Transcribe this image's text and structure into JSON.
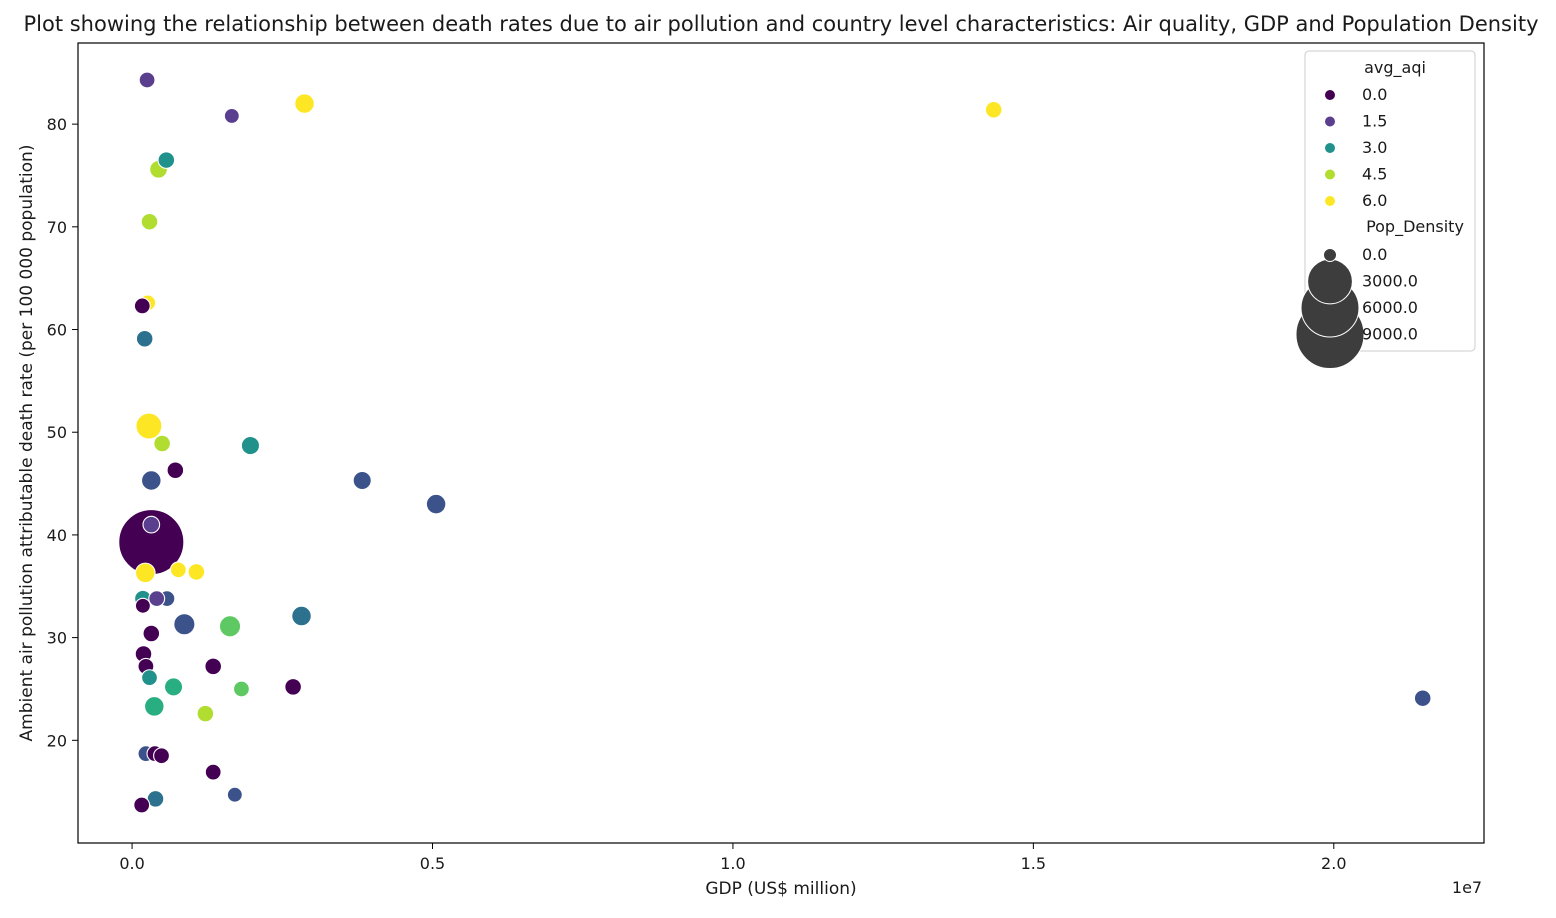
{
  "chart_data": {
    "type": "scatter",
    "title": "Plot showing the relationship between death rates due to air pollution and country level characteristics: Air quality, GDP and Population Density",
    "xlabel": "GDP (US$ million)",
    "ylabel": "Ambient air pollution attributable death rate (per 100 000 population)",
    "x_offset_label": "1e7",
    "x_ticks": [
      "0.0",
      "0.5",
      "1.0",
      "1.5",
      "2.0"
    ],
    "y_ticks": [
      "20",
      "30",
      "40",
      "50",
      "60",
      "70",
      "80"
    ],
    "xlim": [
      -0.09,
      2.25
    ],
    "ylim": [
      10,
      87.9
    ],
    "x_multiplier": 10000000,
    "grid": false,
    "legend_position": "top-right",
    "legend": {
      "hue_title": "avg_aqi",
      "hue_entries": [
        {
          "label": "0.0",
          "color": "#440154"
        },
        {
          "label": "1.5",
          "color": "#5b3f8f"
        },
        {
          "label": "3.0",
          "color": "#21918c"
        },
        {
          "label": "4.5",
          "color": "#b0dd2f"
        },
        {
          "label": "6.0",
          "color": "#fde725"
        }
      ],
      "size_title": "Pop_Density",
      "size_entries": [
        {
          "label": "0.0",
          "size": 0
        },
        {
          "label": "3000.0",
          "size": 3000
        },
        {
          "label": "6000.0",
          "size": 6000
        },
        {
          "label": "9000.0",
          "size": 9000
        }
      ]
    },
    "points": [
      {
        "x": 0.025,
        "y": 84.3,
        "color": "#5b3f8f",
        "pop_density": 120
      },
      {
        "x": 0.166,
        "y": 80.8,
        "color": "#5b3f8f",
        "pop_density": 90
      },
      {
        "x": 0.287,
        "y": 82.0,
        "color": "#fde725",
        "pop_density": 300
      },
      {
        "x": 1.434,
        "y": 81.4,
        "color": "#fde725",
        "pop_density": 150
      },
      {
        "x": 0.057,
        "y": 76.5,
        "color": "#21918c",
        "pop_density": 150
      },
      {
        "x": 0.044,
        "y": 75.6,
        "color": "#b0dd2f",
        "pop_density": 200
      },
      {
        "x": 0.029,
        "y": 70.5,
        "color": "#b0dd2f",
        "pop_density": 150
      },
      {
        "x": 0.026,
        "y": 62.6,
        "color": "#fde725",
        "pop_density": 120
      },
      {
        "x": 0.017,
        "y": 62.3,
        "color": "#440154",
        "pop_density": 120
      },
      {
        "x": 0.021,
        "y": 59.1,
        "color": "#2c728e",
        "pop_density": 150
      },
      {
        "x": 0.028,
        "y": 50.6,
        "color": "#fde725",
        "pop_density": 800
      },
      {
        "x": 0.05,
        "y": 48.9,
        "color": "#b0dd2f",
        "pop_density": 150
      },
      {
        "x": 0.197,
        "y": 48.7,
        "color": "#21918c",
        "pop_density": 220
      },
      {
        "x": 0.072,
        "y": 46.3,
        "color": "#440154",
        "pop_density": 150
      },
      {
        "x": 0.032,
        "y": 45.3,
        "color": "#3b528b",
        "pop_density": 300
      },
      {
        "x": 0.383,
        "y": 45.3,
        "color": "#3b528b",
        "pop_density": 220
      },
      {
        "x": 0.506,
        "y": 43.0,
        "color": "#3b528b",
        "pop_density": 300
      },
      {
        "x": 0.032,
        "y": 41.0,
        "color": "#5b3f8f",
        "pop_density": 150
      },
      {
        "x": 0.032,
        "y": 39.3,
        "color": "#440154",
        "pop_density": 9000
      },
      {
        "x": 0.077,
        "y": 36.6,
        "color": "#fde725",
        "pop_density": 120
      },
      {
        "x": 0.107,
        "y": 36.4,
        "color": "#fde725",
        "pop_density": 150
      },
      {
        "x": 0.022,
        "y": 36.3,
        "color": "#fde725",
        "pop_density": 300
      },
      {
        "x": 0.018,
        "y": 33.8,
        "color": "#21918c",
        "pop_density": 150
      },
      {
        "x": 0.058,
        "y": 33.8,
        "color": "#3b528b",
        "pop_density": 120
      },
      {
        "x": 0.041,
        "y": 33.8,
        "color": "#5b3f8f",
        "pop_density": 120
      },
      {
        "x": 0.018,
        "y": 33.1,
        "color": "#440154",
        "pop_density": 90
      },
      {
        "x": 0.282,
        "y": 32.1,
        "color": "#2c728e",
        "pop_density": 300
      },
      {
        "x": 0.087,
        "y": 31.3,
        "color": "#3b528b",
        "pop_density": 400
      },
      {
        "x": 0.163,
        "y": 31.1,
        "color": "#5ec962",
        "pop_density": 400
      },
      {
        "x": 0.032,
        "y": 30.4,
        "color": "#440154",
        "pop_density": 150
      },
      {
        "x": 0.019,
        "y": 28.4,
        "color": "#440154",
        "pop_density": 150
      },
      {
        "x": 0.023,
        "y": 27.2,
        "color": "#440154",
        "pop_density": 120
      },
      {
        "x": 0.135,
        "y": 27.2,
        "color": "#440154",
        "pop_density": 150
      },
      {
        "x": 0.029,
        "y": 26.1,
        "color": "#21918c",
        "pop_density": 120
      },
      {
        "x": 0.069,
        "y": 25.2,
        "color": "#28ae80",
        "pop_density": 220
      },
      {
        "x": 0.268,
        "y": 25.2,
        "color": "#440154",
        "pop_density": 150
      },
      {
        "x": 0.182,
        "y": 25.0,
        "color": "#5ec962",
        "pop_density": 120
      },
      {
        "x": 0.037,
        "y": 23.3,
        "color": "#28ae80",
        "pop_density": 300
      },
      {
        "x": 0.122,
        "y": 22.6,
        "color": "#b0dd2f",
        "pop_density": 150
      },
      {
        "x": 2.148,
        "y": 24.1,
        "color": "#3b528b",
        "pop_density": 150
      },
      {
        "x": 0.023,
        "y": 18.7,
        "color": "#3b528b",
        "pop_density": 120
      },
      {
        "x": 0.038,
        "y": 18.7,
        "color": "#440154",
        "pop_density": 120
      },
      {
        "x": 0.049,
        "y": 18.5,
        "color": "#440154",
        "pop_density": 120
      },
      {
        "x": 0.135,
        "y": 16.9,
        "color": "#440154",
        "pop_density": 120
      },
      {
        "x": 0.171,
        "y": 14.7,
        "color": "#3b528b",
        "pop_density": 90
      },
      {
        "x": 0.039,
        "y": 14.3,
        "color": "#2c728e",
        "pop_density": 150
      },
      {
        "x": 0.016,
        "y": 13.7,
        "color": "#440154",
        "pop_density": 120
      }
    ]
  }
}
